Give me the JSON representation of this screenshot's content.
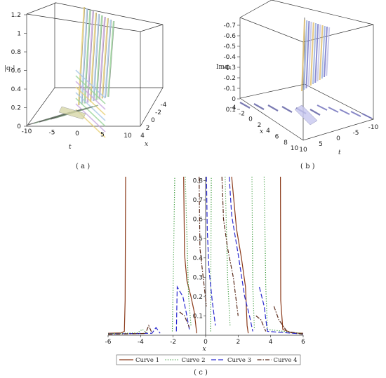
{
  "panels": {
    "a": {
      "caption": "( a )",
      "zlabel": "|q₂|",
      "xlabel": "x",
      "tlabel": "t",
      "zticks": [
        "0",
        "0.2",
        "0.4",
        "0.6",
        "0.8",
        "1",
        "1.2"
      ],
      "tticks": [
        "-10",
        "-5",
        "0",
        "5",
        "10"
      ],
      "xticks": [
        "4",
        "2",
        "0",
        "-2",
        "-4"
      ],
      "colors": [
        "#e8d27a",
        "#a8c8e8",
        "#9bd49b",
        "#c9a8e0"
      ]
    },
    "b": {
      "caption": "( b )",
      "zlabel": "Imq₂",
      "xlabel": "x",
      "tlabel": "t",
      "zticks": [
        "-0.7",
        "-0.6",
        "-0.5",
        "-0.4",
        "-0.3",
        "-0.2",
        "-0.1",
        "0",
        "0.1"
      ],
      "xticks": [
        "-4",
        "-2",
        "0",
        "2",
        "4",
        "6",
        "8",
        "10"
      ],
      "tticks": [
        "10",
        "5",
        "0",
        "-5",
        "-10"
      ],
      "colors": [
        "#e0c070",
        "#9ab0e0",
        "#7a7ac8",
        "#c0c0e8"
      ]
    },
    "c": {
      "caption": "( c )",
      "xlabel": "x"
    }
  },
  "chart_data": {
    "type": "line",
    "title": "",
    "xlabel": "x",
    "ylabel": "",
    "xlim": [
      -6,
      6
    ],
    "ylim": [
      0,
      0.82
    ],
    "xticks": [
      "-6",
      "-4",
      "-2",
      "0",
      "2",
      "4",
      "6"
    ],
    "yticks": [
      "0.1",
      "0.2",
      "0.3",
      "0.4",
      "0.5",
      "0.6",
      "0.7",
      "0.8"
    ],
    "legend_position": "bottom",
    "series": [
      {
        "name": "Curve 1",
        "color": "#8b3a1a",
        "dash": "solid",
        "segments": [
          [
            [
              -6.0,
              0.01
            ],
            [
              -5.2,
              0.012
            ],
            [
              -5.0,
              0.02
            ],
            [
              -4.95,
              0.18
            ],
            [
              -4.92,
              0.82
            ]
          ],
          [
            [
              -1.35,
              0.82
            ],
            [
              -1.3,
              0.42
            ],
            [
              -1.15,
              0.28
            ],
            [
              -0.9,
              0.2
            ],
            [
              -0.7,
              0.12
            ],
            [
              -0.55,
              0.01
            ]
          ],
          [
            [
              1.6,
              0.82
            ],
            [
              1.9,
              0.55
            ],
            [
              2.2,
              0.4
            ],
            [
              2.45,
              0.25
            ],
            [
              2.55,
              0.05
            ],
            [
              2.62,
              0.01
            ]
          ],
          [
            [
              4.6,
              0.82
            ],
            [
              4.62,
              0.18
            ],
            [
              4.75,
              0.03
            ],
            [
              5.3,
              0.012
            ],
            [
              6.0,
              0.01
            ]
          ]
        ]
      },
      {
        "name": "Curve 2",
        "color": "#3a9a3a",
        "dash": "1.2,2.2",
        "segments": [
          [
            [
              -6.0,
              0.008
            ],
            [
              -4.2,
              0.012
            ],
            [
              -3.9,
              0.03
            ],
            [
              -3.6,
              0.012
            ]
          ],
          [
            [
              -2.05,
              0.02
            ],
            [
              -2.0,
              0.25
            ],
            [
              -1.9,
              0.82
            ]
          ],
          [
            [
              -1.25,
              0.82
            ],
            [
              -1.05,
              0.2
            ],
            [
              -0.9,
              0.05
            ]
          ],
          [
            [
              0.3,
              0.02
            ],
            [
              0.35,
              0.82
            ]
          ],
          [
            [
              1.2,
              0.82
            ],
            [
              1.35,
              0.3
            ],
            [
              1.5,
              0.05
            ]
          ],
          [
            [
              2.85,
              0.82
            ],
            [
              2.9,
              0.25
            ],
            [
              3.0,
              0.03
            ]
          ],
          [
            [
              3.6,
              0.82
            ],
            [
              3.7,
              0.25
            ],
            [
              3.8,
              0.03
            ],
            [
              6.0,
              0.008
            ]
          ]
        ]
      },
      {
        "name": "Curve 3",
        "color": "#2a2ad0",
        "dash": "7,3",
        "segments": [
          [
            [
              -6.0,
              0.006
            ],
            [
              -3.3,
              0.01
            ],
            [
              -3.05,
              0.04
            ],
            [
              -2.8,
              0.01
            ]
          ],
          [
            [
              -1.8,
              0.02
            ],
            [
              -1.75,
              0.25
            ],
            [
              -1.4,
              0.2
            ],
            [
              -1.2,
              0.12
            ],
            [
              -1.0,
              0.03
            ]
          ],
          [
            [
              0.05,
              0.82
            ],
            [
              0.1,
              0.55
            ],
            [
              0.2,
              0.35
            ],
            [
              0.4,
              0.18
            ],
            [
              0.6,
              0.05
            ]
          ],
          [
            [
              1.45,
              0.82
            ],
            [
              1.6,
              0.62
            ],
            [
              2.0,
              0.42
            ],
            [
              2.4,
              0.2
            ],
            [
              2.7,
              0.1
            ],
            [
              2.9,
              0.02
            ]
          ],
          [
            [
              3.3,
              0.25
            ],
            [
              3.6,
              0.15
            ],
            [
              3.8,
              0.02
            ],
            [
              6.0,
              0.006
            ]
          ]
        ]
      },
      {
        "name": "Curve 4",
        "color": "#5a2a1a",
        "dash": "6,2,1.5,2",
        "segments": [
          [
            [
              -6.0,
              0.005
            ],
            [
              -3.7,
              0.009
            ],
            [
              -3.5,
              0.05
            ],
            [
              -3.3,
              0.01
            ]
          ],
          [
            [
              -1.6,
              0.12
            ],
            [
              -1.3,
              0.1
            ],
            [
              -1.0,
              0.04
            ]
          ],
          [
            [
              -0.4,
              0.82
            ],
            [
              -0.35,
              0.45
            ],
            [
              -0.15,
              0.3
            ],
            [
              0.05,
              0.15
            ]
          ],
          [
            [
              1.0,
              0.82
            ],
            [
              1.1,
              0.6
            ],
            [
              1.35,
              0.45
            ],
            [
              1.7,
              0.3
            ],
            [
              2.0,
              0.1
            ]
          ],
          [
            [
              3.1,
              0.1
            ],
            [
              3.4,
              0.08
            ],
            [
              3.7,
              0.02
            ]
          ],
          [
            [
              4.2,
              0.15
            ],
            [
              4.5,
              0.08
            ],
            [
              5.0,
              0.02
            ],
            [
              6.0,
              0.005
            ]
          ]
        ]
      }
    ]
  }
}
